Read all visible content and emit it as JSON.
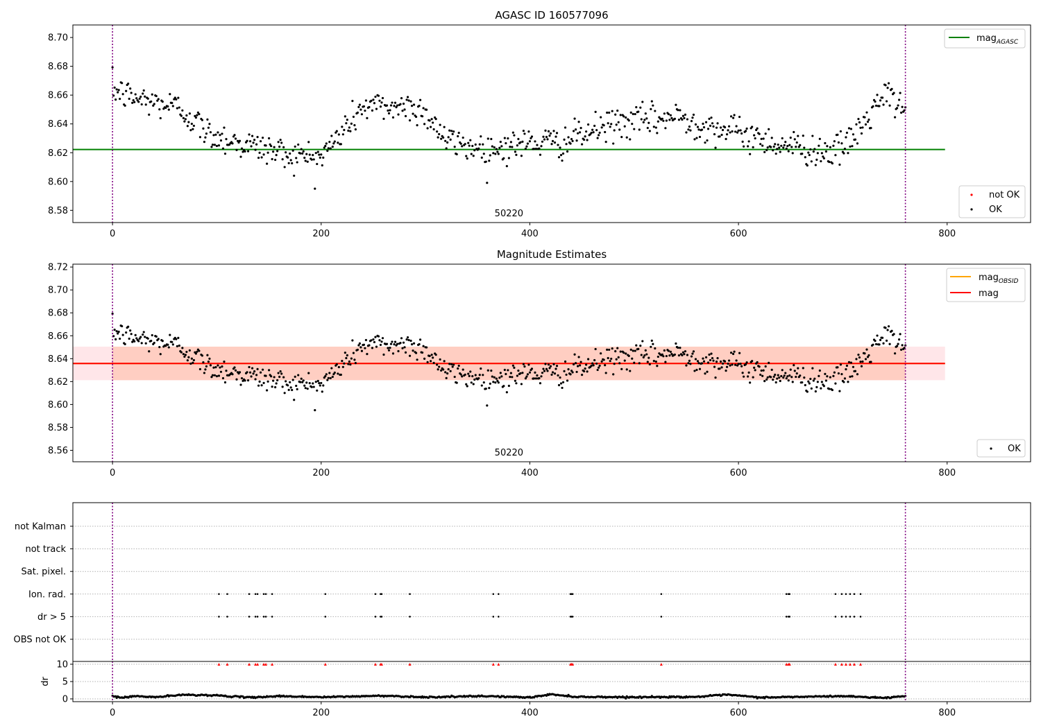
{
  "chart_data": [
    {
      "panel": "agasc",
      "type": "scatter",
      "title": "AGASC ID 160577096",
      "xlim": [
        -38,
        880
      ],
      "ylim": [
        8.5715,
        8.7087
      ],
      "x_ticks": [
        "0",
        "200",
        "400",
        "600",
        "800"
      ],
      "x_tick_values": [
        0,
        200,
        400,
        600,
        800
      ],
      "y_ticks": [
        "8.58",
        "8.60",
        "8.62",
        "8.64",
        "8.66",
        "8.68",
        "8.70"
      ],
      "y_tick_values": [
        8.58,
        8.6,
        8.62,
        8.64,
        8.66,
        8.68,
        8.7
      ],
      "annotation": "50220",
      "annotation_x": 380,
      "vlines": [
        0,
        760
      ],
      "hlines": [
        {
          "name": "mag_AGASC",
          "y": 8.6222,
          "x_range": [
            -38,
            798
          ],
          "color": "#008000"
        }
      ],
      "legend_upper": [
        {
          "label": "mag",
          "subscript": "AGASC",
          "color": "#008000"
        }
      ],
      "legend_lower": [
        {
          "label": "not OK",
          "color": "#ff0000"
        },
        {
          "label": "OK",
          "color": "#000000"
        }
      ],
      "series": [
        {
          "name": "OK",
          "color": "#000000",
          "x_range": [
            0,
            760
          ],
          "y_profile": [
            [
              0,
              8.664
            ],
            [
              20,
              8.658
            ],
            [
              60,
              8.652
            ],
            [
              70,
              8.648
            ],
            [
              90,
              8.634
            ],
            [
              120,
              8.627
            ],
            [
              175,
              8.618
            ],
            [
              200,
              8.617
            ],
            [
              215,
              8.63
            ],
            [
              240,
              8.652
            ],
            [
              290,
              8.652
            ],
            [
              305,
              8.644
            ],
            [
              320,
              8.628
            ],
            [
              360,
              8.622
            ],
            [
              400,
              8.627
            ],
            [
              430,
              8.627
            ],
            [
              480,
              8.64
            ],
            [
              545,
              8.645
            ],
            [
              560,
              8.64
            ],
            [
              600,
              8.634
            ],
            [
              640,
              8.626
            ],
            [
              680,
              8.621
            ],
            [
              700,
              8.622
            ],
            [
              720,
              8.64
            ],
            [
              740,
              8.66
            ],
            [
              760,
              8.65
            ]
          ],
          "noise_sd": 0.0055
        }
      ]
    },
    {
      "panel": "estimates",
      "type": "scatter",
      "title": "Magnitude Estimates",
      "xlim": [
        -38,
        880
      ],
      "ylim": [
        8.55,
        8.7225
      ],
      "x_ticks": [
        "0",
        "200",
        "400",
        "600",
        "800"
      ],
      "x_tick_values": [
        0,
        200,
        400,
        600,
        800
      ],
      "y_ticks": [
        "8.56",
        "8.58",
        "8.60",
        "8.62",
        "8.64",
        "8.66",
        "8.68",
        "8.70",
        "8.72"
      ],
      "y_tick_values": [
        8.56,
        8.58,
        8.6,
        8.62,
        8.64,
        8.66,
        8.68,
        8.7,
        8.72
      ],
      "annotation": "50220",
      "annotation_x": 380,
      "vlines": [
        0,
        760
      ],
      "hlines": [
        {
          "name": "mag_OBSID",
          "y": 8.6358,
          "x_range": [
            -38,
            798
          ],
          "color": "#ffa500"
        },
        {
          "name": "mag",
          "y": 8.6358,
          "x_range": [
            -38,
            798
          ],
          "color": "#ff0000"
        }
      ],
      "bands": [
        {
          "y": [
            8.6212,
            8.6505
          ],
          "x_range": [
            -38,
            798
          ],
          "color": "#ffb6c1",
          "opacity": 0.35
        },
        {
          "y": [
            8.6212,
            8.6505
          ],
          "x_range": [
            0,
            760
          ],
          "color": "#ffa07a",
          "opacity": 0.35
        }
      ],
      "legend_upper": [
        {
          "label": "mag",
          "subscript": "OBSID",
          "color": "#ffa500"
        },
        {
          "label": "mag",
          "subscript": "",
          "color": "#ff0000"
        }
      ],
      "legend_lower": [
        {
          "label": "OK",
          "color": "#000000"
        }
      ],
      "series": [
        {
          "name": "OK",
          "color": "#000000",
          "same_as_panel": "agasc"
        }
      ]
    },
    {
      "panel": "flags",
      "type": "scatter",
      "xlim": [
        -38,
        880
      ],
      "categories": [
        "not Kalman",
        "not track",
        "Sat. pixel.",
        "Ion. rad.",
        "dr > 5",
        "OBS not OK"
      ],
      "vlines": [
        0,
        760
      ],
      "series": [
        {
          "name": "Ion. rad.",
          "x": [
            102,
            110,
            131,
            137,
            139,
            145,
            147,
            153,
            204,
            252,
            257,
            258,
            285,
            365,
            370,
            439,
            440,
            441,
            526,
            646,
            648,
            649,
            693,
            699,
            703,
            707,
            711,
            717
          ]
        },
        {
          "name": "dr > 5",
          "x": [
            102,
            110,
            131,
            137,
            139,
            145,
            147,
            153,
            204,
            252,
            257,
            258,
            285,
            365,
            370,
            439,
            440,
            441,
            526,
            646,
            648,
            649,
            693,
            699,
            703,
            707,
            711,
            717
          ]
        }
      ]
    },
    {
      "panel": "dr",
      "type": "scatter",
      "ylabel": "dr",
      "xlim": [
        -38,
        880
      ],
      "ylim": [
        -0.8,
        10.8
      ],
      "x_ticks": [
        "0",
        "200",
        "400",
        "600",
        "800"
      ],
      "x_tick_values": [
        0,
        200,
        400,
        600,
        800
      ],
      "y_ticks": [
        "0",
        "5",
        "10"
      ],
      "y_tick_values": [
        0,
        5,
        10
      ],
      "vlines": [
        0,
        760
      ],
      "series": [
        {
          "name": "dr",
          "color": "#000000",
          "x_range": [
            0,
            760
          ],
          "y_profile": [
            [
              0,
              0.8
            ],
            [
              10,
              0.3
            ],
            [
              20,
              0.8
            ],
            [
              40,
              0.5
            ],
            [
              70,
              1.2
            ],
            [
              100,
              1.0
            ],
            [
              130,
              0.4
            ],
            [
              160,
              0.8
            ],
            [
              200,
              0.5
            ],
            [
              260,
              0.9
            ],
            [
              300,
              0.5
            ],
            [
              360,
              0.8
            ],
            [
              400,
              0.4
            ],
            [
              420,
              1.3
            ],
            [
              445,
              0.6
            ],
            [
              500,
              0.5
            ],
            [
              560,
              0.6
            ],
            [
              590,
              1.2
            ],
            [
              620,
              0.4
            ],
            [
              700,
              0.8
            ],
            [
              740,
              0.3
            ],
            [
              760,
              0.8
            ]
          ],
          "noise_sd": 0.1
        },
        {
          "name": "dr clipped",
          "color": "#ff0000",
          "y": 10,
          "x": [
            102,
            110,
            131,
            137,
            139,
            145,
            147,
            153,
            204,
            252,
            257,
            258,
            285,
            365,
            370,
            439,
            440,
            441,
            526,
            646,
            648,
            649,
            693,
            699,
            703,
            707,
            711,
            717
          ]
        }
      ]
    }
  ]
}
